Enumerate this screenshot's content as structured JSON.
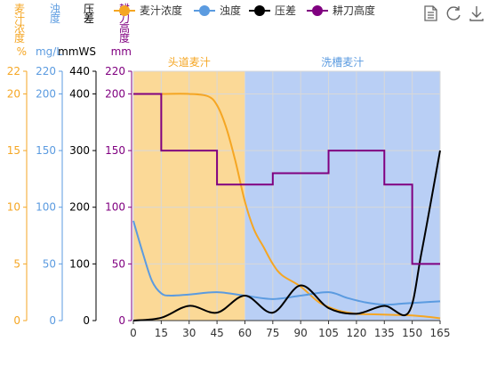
{
  "chart_data": {
    "type": "line",
    "x_ticks": [
      0,
      15,
      30,
      45,
      60,
      75,
      90,
      105,
      120,
      135,
      150,
      165
    ],
    "xlim": [
      0,
      165
    ],
    "regions": [
      {
        "label": "头道麦汁",
        "from": 0,
        "to": 60,
        "color": "#fbd997",
        "text_color": "#f5a623"
      },
      {
        "label": "洗槽麦汁",
        "from": 60,
        "to": 165,
        "color": "#b9cff5",
        "text_color": "#5b9be0"
      }
    ],
    "axes": [
      {
        "id": "wort",
        "title_chars": [
          "麦",
          "汁",
          "浓",
          "度"
        ],
        "unit": "%",
        "color": "#f5a623",
        "ylim": [
          0,
          22
        ],
        "ticks": [
          0,
          5,
          10,
          15,
          20,
          22
        ]
      },
      {
        "id": "turbidity",
        "title_chars": [
          "浊",
          "度"
        ],
        "unit": "mg/L",
        "color": "#5b9be0",
        "ylim": [
          0,
          220
        ],
        "ticks": [
          0,
          50,
          100,
          150,
          200,
          220
        ]
      },
      {
        "id": "pressure",
        "title_chars": [
          "压",
          "差"
        ],
        "unit": "mmWS",
        "color": "#000000",
        "ylim": [
          0,
          440
        ],
        "ticks": [
          0,
          100,
          200,
          300,
          400,
          440
        ]
      },
      {
        "id": "knife",
        "title_chars": [
          "耕",
          "刀",
          "高",
          "度"
        ],
        "unit": "mm",
        "color": "#800080",
        "ylim": [
          0,
          220
        ],
        "ticks": [
          0,
          50,
          100,
          150,
          200,
          220
        ]
      }
    ],
    "series": [
      {
        "name": "麦汁浓度",
        "axis": "wort",
        "color": "#f5a623",
        "style": "smooth",
        "x": [
          0,
          15,
          30,
          40,
          45,
          50,
          55,
          60,
          65,
          70,
          75,
          80,
          90,
          100,
          110,
          120,
          130,
          140,
          150,
          160,
          165
        ],
        "values": [
          20,
          20,
          20,
          19.8,
          19,
          17,
          14,
          10.5,
          8,
          6.5,
          5,
          4,
          3,
          1.6,
          0.9,
          0.6,
          0.55,
          0.5,
          0.45,
          0.3,
          0.2
        ]
      },
      {
        "name": "浊度",
        "axis": "turbidity",
        "color": "#5b9be0",
        "style": "smooth",
        "x": [
          0,
          5,
          10,
          15,
          20,
          30,
          45,
          60,
          75,
          90,
          105,
          115,
          125,
          135,
          145,
          155,
          165
        ],
        "values": [
          88,
          60,
          35,
          24,
          22,
          23,
          25,
          22,
          19,
          22,
          25,
          20,
          16,
          14,
          15,
          16,
          17
        ]
      },
      {
        "name": "压差",
        "axis": "pressure",
        "color": "#000000",
        "style": "smooth",
        "x": [
          0,
          15,
          30,
          45,
          60,
          75,
          90,
          105,
          120,
          135,
          148,
          155,
          165
        ],
        "values": [
          0,
          5,
          26,
          14,
          44,
          14,
          62,
          22,
          12,
          26,
          14,
          120,
          300
        ]
      },
      {
        "name": "耕刀高度",
        "axis": "knife",
        "color": "#800080",
        "style": "step",
        "x": [
          0,
          15,
          15,
          45,
          45,
          75,
          75,
          105,
          105,
          135,
          135,
          150,
          150,
          165
        ],
        "values": [
          200,
          200,
          150,
          150,
          120,
          120,
          130,
          130,
          150,
          150,
          120,
          120,
          50,
          50
        ]
      }
    ],
    "legend_position": "top",
    "grid": true
  },
  "toolbar": {
    "icons": [
      "document-icon",
      "refresh-icon",
      "download-icon"
    ]
  }
}
